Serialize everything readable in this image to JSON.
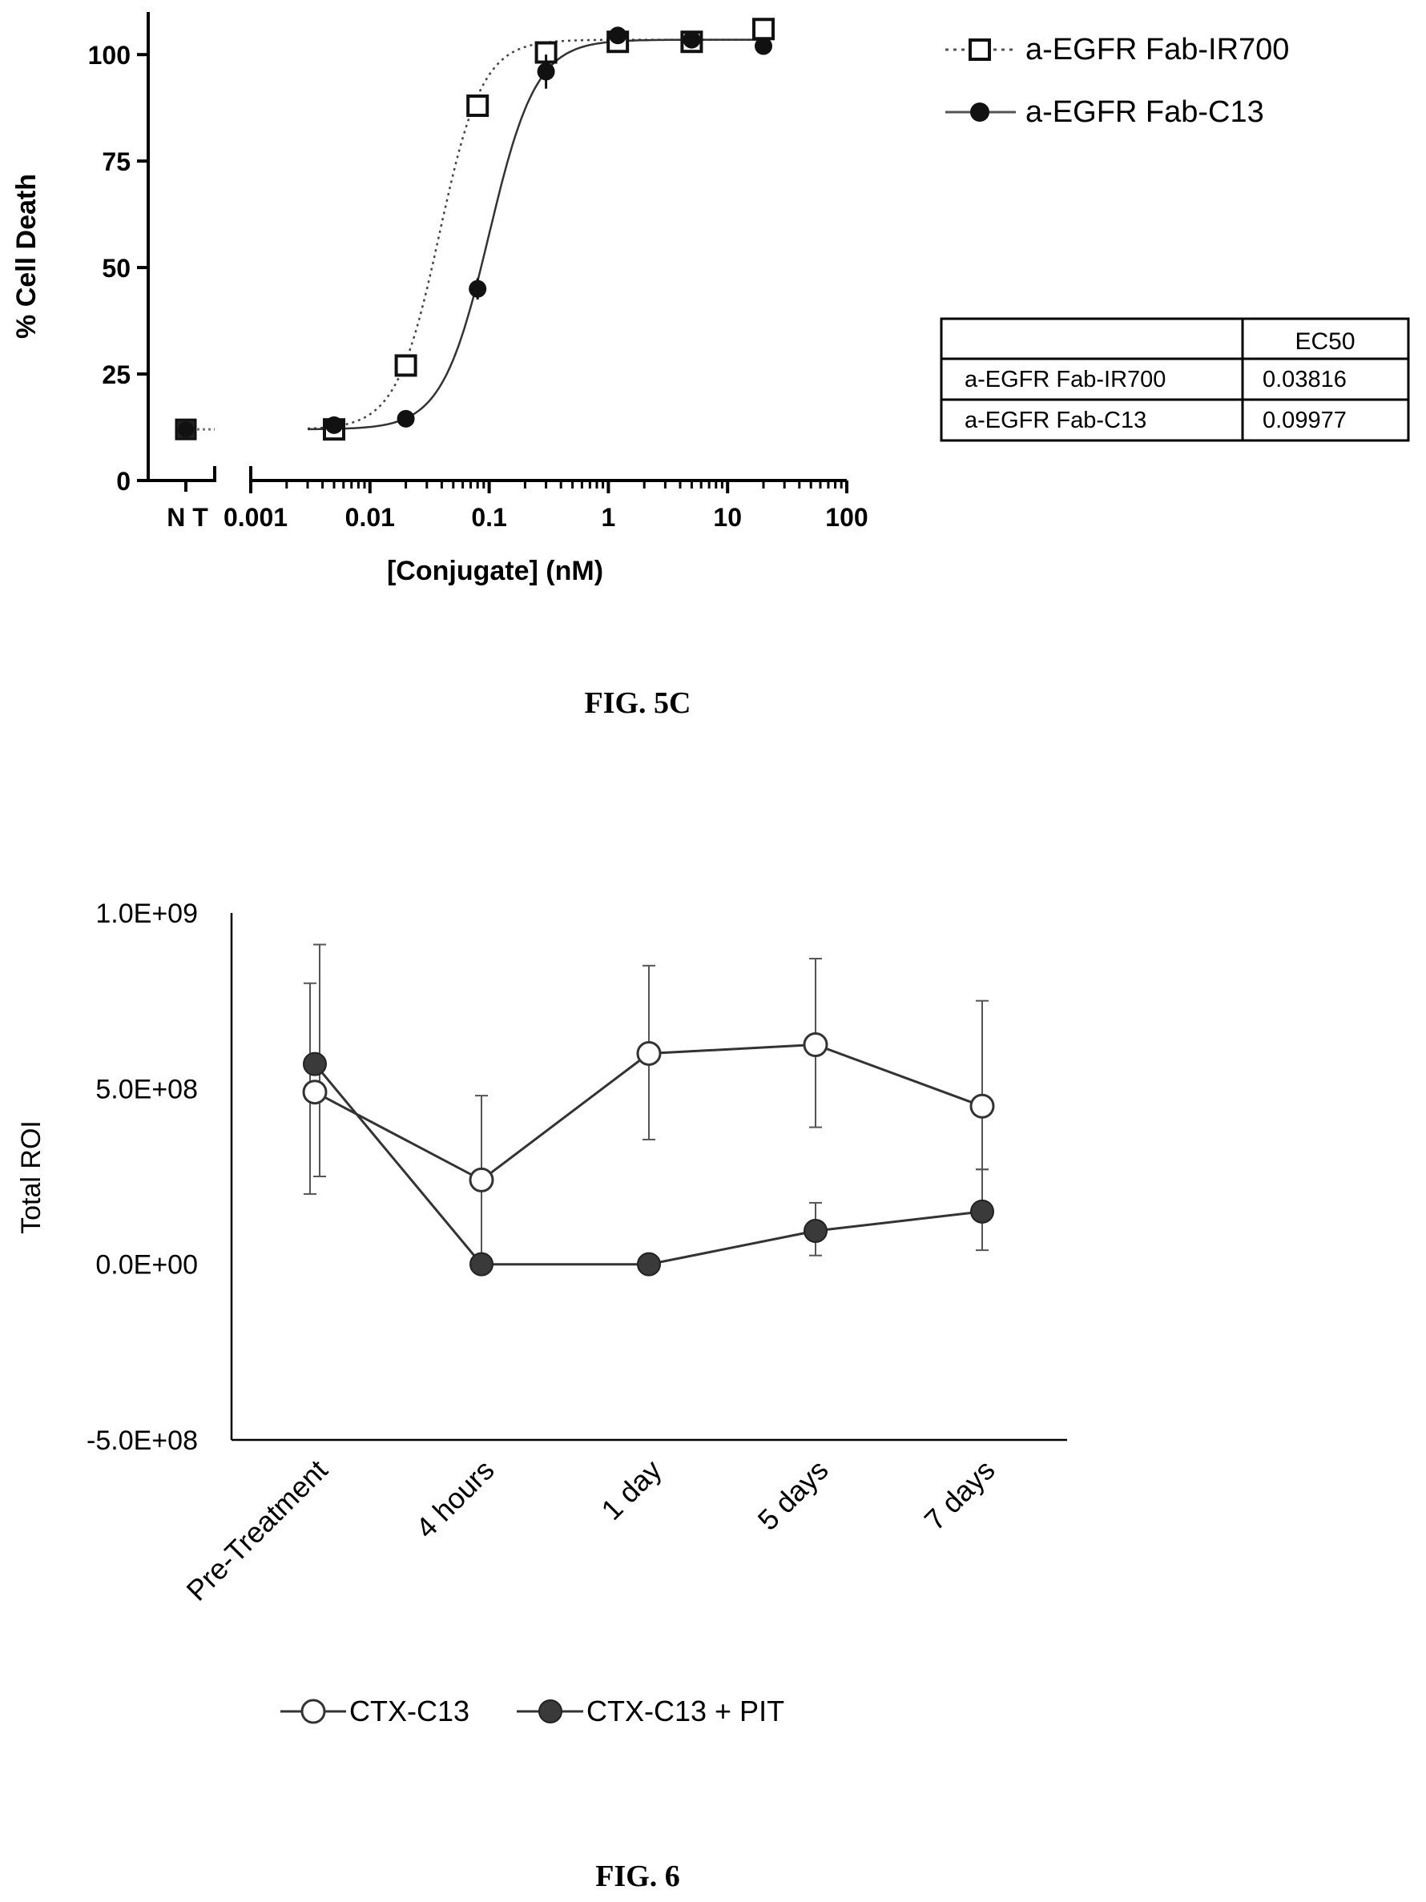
{
  "figures": {
    "fig5c_caption": "FIG. 5C",
    "fig6_caption": "FIG. 6"
  },
  "ec50_table": {
    "header": [
      "",
      "EC50"
    ],
    "rows": [
      [
        "a-EGFR Fab-IR700",
        "0.03816"
      ],
      [
        "a-EGFR Fab-C13",
        "0.09977"
      ]
    ]
  },
  "chart_data": [
    {
      "id": "fig5c",
      "type": "scatter",
      "xlabel": "[Conjugate] (nM)",
      "ylabel": "% Cell Death",
      "x_scale": "log",
      "xlim": [
        0.001,
        100
      ],
      "ylim": [
        0,
        110
      ],
      "x_ticks": [
        "0.001",
        "0.01",
        "0.1",
        "1",
        "10",
        "100"
      ],
      "x_nt_label": "N T",
      "y_ticks": [
        "0",
        "25",
        "50",
        "75",
        "100"
      ],
      "legend_position": "top-right",
      "nt_values": {
        "a-EGFR Fab-IR700": 12,
        "a-EGFR Fab-C13": 12
      },
      "series": [
        {
          "name": "a-EGFR Fab-IR700",
          "marker": "open-square",
          "line": "dotted",
          "ec50": 0.03816,
          "fit_bottom": 12,
          "fit_top": 103.5,
          "points": [
            {
              "x": 0.005,
              "y": 12
            },
            {
              "x": 0.02,
              "y": 27
            },
            {
              "x": 0.08,
              "y": 88
            },
            {
              "x": 0.3,
              "y": 100.5
            },
            {
              "x": 1.2,
              "y": 103
            },
            {
              "x": 5,
              "y": 103
            },
            {
              "x": 20,
              "y": 106
            }
          ]
        },
        {
          "name": "a-EGFR Fab-C13",
          "marker": "filled-circle",
          "line": "solid",
          "ec50": 0.09977,
          "fit_bottom": 12,
          "fit_top": 103.5,
          "points": [
            {
              "x": 0.005,
              "y": 13,
              "err": 1
            },
            {
              "x": 0.02,
              "y": 14.5
            },
            {
              "x": 0.08,
              "y": 45,
              "err": 2.5
            },
            {
              "x": 0.3,
              "y": 96,
              "err": 4
            },
            {
              "x": 1.2,
              "y": 104.5
            },
            {
              "x": 5,
              "y": 103.5
            },
            {
              "x": 20,
              "y": 102
            }
          ]
        }
      ]
    },
    {
      "id": "fig6",
      "type": "line",
      "xlabel": "",
      "ylabel": "Total ROI",
      "categories": [
        "Pre-Treatment",
        "4 hours",
        "1 day",
        "5 days",
        "7 days"
      ],
      "y_ticks": [
        "1.0E+09",
        "5.0E+08",
        "0.0E+00",
        "-5.0E+08"
      ],
      "ylim": [
        -500000000,
        1000000000
      ],
      "legend_position": "bottom",
      "series": [
        {
          "name": "CTX-C13",
          "marker": "open-circle",
          "values": [
            490000000,
            240000000,
            600000000,
            625000000,
            450000000
          ],
          "err_high": [
            800000000,
            480000000,
            850000000,
            870000000,
            750000000
          ],
          "err_low": [
            200000000,
            0,
            355000000,
            390000000,
            270000000
          ]
        },
        {
          "name": "CTX-C13 + PIT",
          "marker": "filled-circle",
          "values": [
            570000000,
            0,
            0,
            95000000,
            150000000
          ],
          "err_high": [
            910000000,
            0,
            0,
            175000000,
            270000000
          ],
          "err_low": [
            250000000,
            0,
            0,
            25000000,
            40000000
          ]
        }
      ]
    }
  ]
}
